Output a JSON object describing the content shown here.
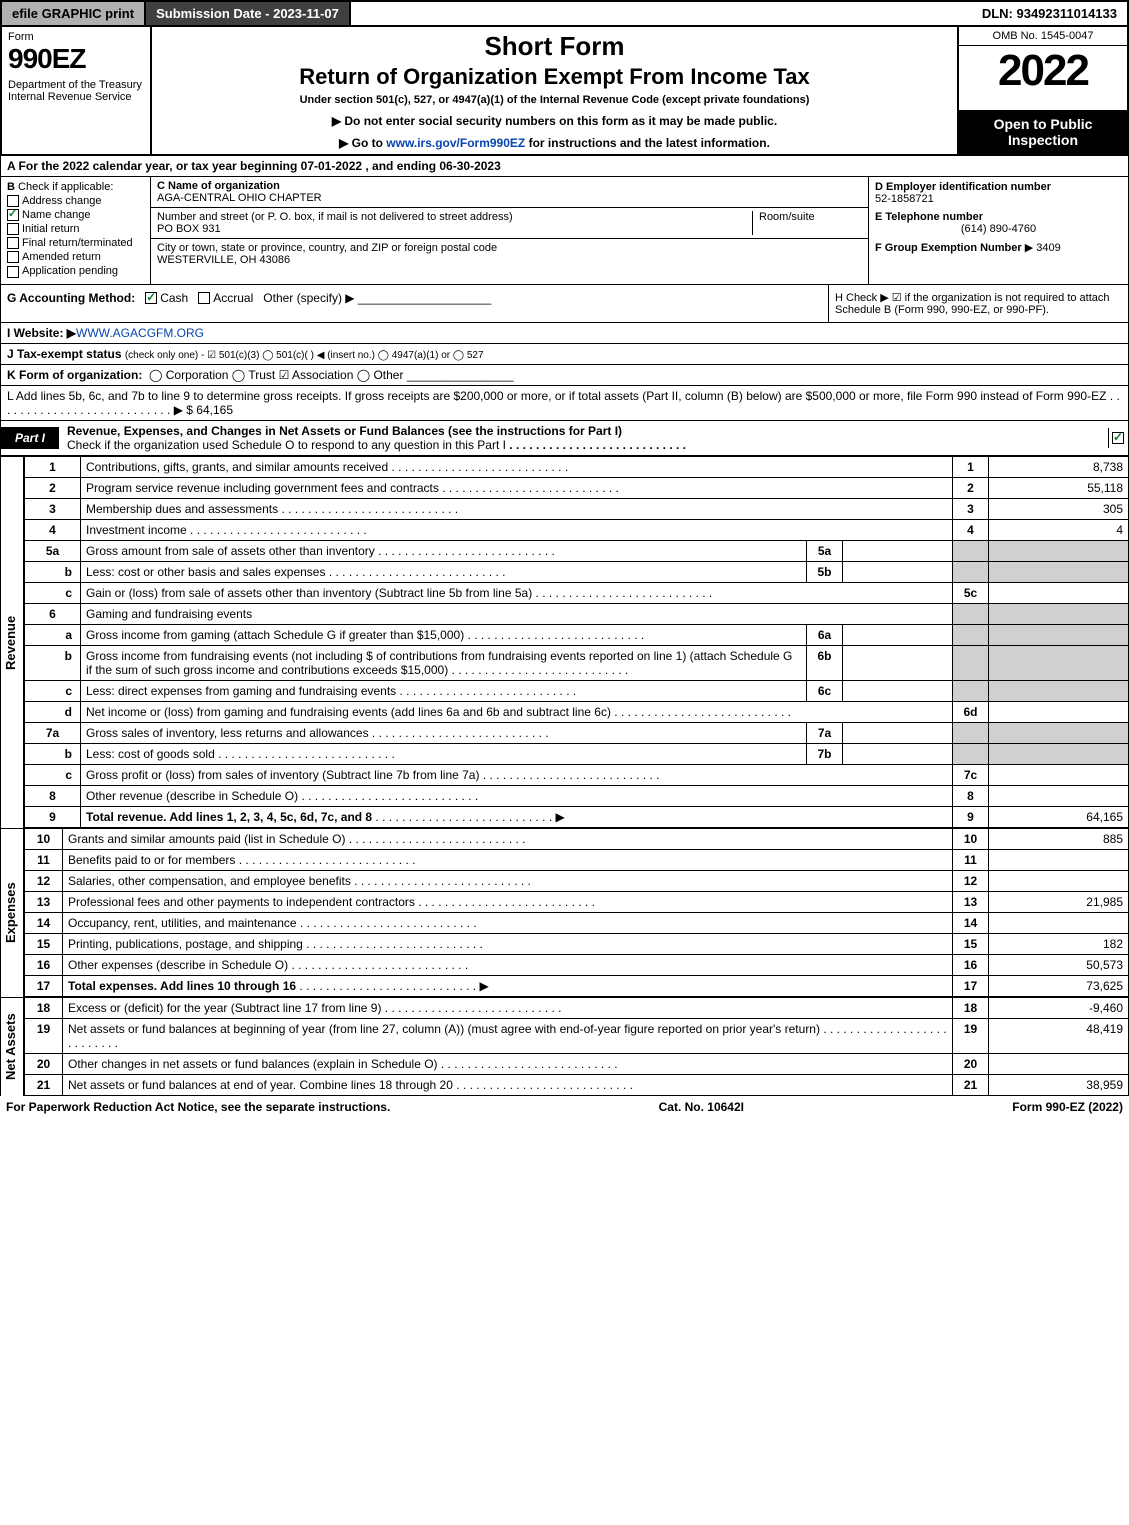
{
  "topbar": {
    "efile": "efile GRAPHIC print",
    "sub": "Submission Date - 2023-11-07",
    "dln": "DLN: 93492311014133"
  },
  "hdr": {
    "form": "Form",
    "num": "990EZ",
    "dept": "Department of the Treasury\nInternal Revenue Service",
    "t1": "Short Form",
    "t2": "Return of Organization Exempt From Income Tax",
    "t3": "Under section 501(c), 527, or 4947(a)(1) of the Internal Revenue Code (except private foundations)",
    "t4a": "▶ Do not enter social security numbers on this form as it may be made public.",
    "t4b": "▶ Go to www.irs.gov/Form990EZ for instructions and the latest information.",
    "link": "www.irs.gov/Form990EZ",
    "omb": "OMB No. 1545-0047",
    "yr": "2022",
    "insp": "Open to Public Inspection"
  },
  "A": "A  For the 2022 calendar year, or tax year beginning 07-01-2022 , and ending 06-30-2023",
  "B": {
    "lbl": "B",
    "txt": "Check if applicable:",
    "addr": "Address change",
    "name": "Name change",
    "init": "Initial return",
    "final": "Final return/terminated",
    "amend": "Amended return",
    "app": "Application pending",
    "name_checked": true
  },
  "C": {
    "lbl": "C Name of organization",
    "org": "AGA-CENTRAL OHIO CHAPTER",
    "street_lbl": "Number and street (or P. O. box, if mail is not delivered to street address)",
    "room_lbl": "Room/suite",
    "street": "PO BOX 931",
    "city_lbl": "City or town, state or province, country, and ZIP or foreign postal code",
    "city": "WESTERVILLE, OH  43086"
  },
  "D": {
    "lbl": "D Employer identification number",
    "val": "52-1858721"
  },
  "E": {
    "lbl": "E Telephone number",
    "val": "(614) 890-4760"
  },
  "F": {
    "lbl": "F Group Exemption Number",
    "val": "▶ 3409"
  },
  "G": {
    "lbl": "G Accounting Method:",
    "cash": "Cash",
    "accr": "Accrual",
    "other": "Other (specify) ▶"
  },
  "H": {
    "txt": "H   Check ▶ ☑ if the organization is not required to attach Schedule B (Form 990, 990-EZ, or 990-PF)."
  },
  "I": {
    "lbl": "I Website: ▶",
    "val": "WWW.AGACGFM.ORG"
  },
  "J": {
    "lbl": "J Tax-exempt status",
    "txt": "(check only one) - ☑ 501(c)(3)  ◯ 501(c)(  ) ◀ (insert no.)  ◯ 4947(a)(1) or  ◯ 527"
  },
  "K": {
    "lbl": "K Form of organization:",
    "txt": "◯ Corporation   ◯ Trust   ☑ Association   ◯ Other"
  },
  "L": {
    "txt": "L Add lines 5b, 6c, and 7b to line 9 to determine gross receipts. If gross receipts are $200,000 or more, or if total assets (Part II, column (B) below) are $500,000 or more, file Form 990 instead of Form 990-EZ",
    "val": "▶ $ 64,165"
  },
  "part1": {
    "tag": "Part I",
    "title": "Revenue, Expenses, and Changes in Net Assets or Fund Balances (see the instructions for Part I)",
    "sub": "Check if the organization used Schedule O to respond to any question in this Part I"
  },
  "sections": {
    "rev": "Revenue",
    "exp": "Expenses",
    "na": "Net Assets"
  },
  "rows": [
    {
      "n": "1",
      "d": "Contributions, gifts, grants, and similar amounts received",
      "rn": "1",
      "v": "8,738"
    },
    {
      "n": "2",
      "d": "Program service revenue including government fees and contracts",
      "rn": "2",
      "v": "55,118"
    },
    {
      "n": "3",
      "d": "Membership dues and assessments",
      "rn": "3",
      "v": "305"
    },
    {
      "n": "4",
      "d": "Investment income",
      "rn": "4",
      "v": "4"
    },
    {
      "n": "5a",
      "d": "Gross amount from sale of assets other than inventory",
      "mid": "5a",
      "shade": true
    },
    {
      "n": "b",
      "d": "Less: cost or other basis and sales expenses",
      "mid": "5b",
      "shade": true
    },
    {
      "n": "c",
      "d": "Gain or (loss) from sale of assets other than inventory (Subtract line 5b from line 5a)",
      "rn": "5c",
      "v": ""
    },
    {
      "n": "6",
      "d": "Gaming and fundraising events",
      "shade": true,
      "noval": true
    },
    {
      "n": "a",
      "d": "Gross income from gaming (attach Schedule G if greater than $15,000)",
      "mid": "6a",
      "shade": true
    },
    {
      "n": "b",
      "d": "Gross income from fundraising events (not including $                    of contributions from fundraising events reported on line 1) (attach Schedule G if the sum of such gross income and contributions exceeds $15,000)",
      "mid": "6b",
      "shade": true
    },
    {
      "n": "c",
      "d": "Less: direct expenses from gaming and fundraising events",
      "mid": "6c",
      "shade": true
    },
    {
      "n": "d",
      "d": "Net income or (loss) from gaming and fundraising events (add lines 6a and 6b and subtract line 6c)",
      "rn": "6d",
      "v": ""
    },
    {
      "n": "7a",
      "d": "Gross sales of inventory, less returns and allowances",
      "mid": "7a",
      "shade": true
    },
    {
      "n": "b",
      "d": "Less: cost of goods sold",
      "mid": "7b",
      "shade": true
    },
    {
      "n": "c",
      "d": "Gross profit or (loss) from sales of inventory (Subtract line 7b from line 7a)",
      "rn": "7c",
      "v": ""
    },
    {
      "n": "8",
      "d": "Other revenue (describe in Schedule O)",
      "rn": "8",
      "v": ""
    },
    {
      "n": "9",
      "d": "Total revenue. Add lines 1, 2, 3, 4, 5c, 6d, 7c, and 8",
      "rn": "9",
      "v": "64,165",
      "bold": true,
      "arrow": true
    }
  ],
  "exp": [
    {
      "n": "10",
      "d": "Grants and similar amounts paid (list in Schedule O)",
      "rn": "10",
      "v": "885"
    },
    {
      "n": "11",
      "d": "Benefits paid to or for members",
      "rn": "11",
      "v": ""
    },
    {
      "n": "12",
      "d": "Salaries, other compensation, and employee benefits",
      "rn": "12",
      "v": ""
    },
    {
      "n": "13",
      "d": "Professional fees and other payments to independent contractors",
      "rn": "13",
      "v": "21,985"
    },
    {
      "n": "14",
      "d": "Occupancy, rent, utilities, and maintenance",
      "rn": "14",
      "v": ""
    },
    {
      "n": "15",
      "d": "Printing, publications, postage, and shipping",
      "rn": "15",
      "v": "182"
    },
    {
      "n": "16",
      "d": "Other expenses (describe in Schedule O)",
      "rn": "16",
      "v": "50,573"
    },
    {
      "n": "17",
      "d": "Total expenses. Add lines 10 through 16",
      "rn": "17",
      "v": "73,625",
      "bold": true,
      "arrow": true
    }
  ],
  "na": [
    {
      "n": "18",
      "d": "Excess or (deficit) for the year (Subtract line 17 from line 9)",
      "rn": "18",
      "v": "-9,460"
    },
    {
      "n": "19",
      "d": "Net assets or fund balances at beginning of year (from line 27, column (A)) (must agree with end-of-year figure reported on prior year's return)",
      "rn": "19",
      "v": "48,419"
    },
    {
      "n": "20",
      "d": "Other changes in net assets or fund balances (explain in Schedule O)",
      "rn": "20",
      "v": ""
    },
    {
      "n": "21",
      "d": "Net assets or fund balances at end of year. Combine lines 18 through 20",
      "rn": "21",
      "v": "38,959"
    }
  ],
  "foot": {
    "l": "For Paperwork Reduction Act Notice, see the separate instructions.",
    "c": "Cat. No. 10642I",
    "r": "Form 990-EZ (2022)"
  }
}
